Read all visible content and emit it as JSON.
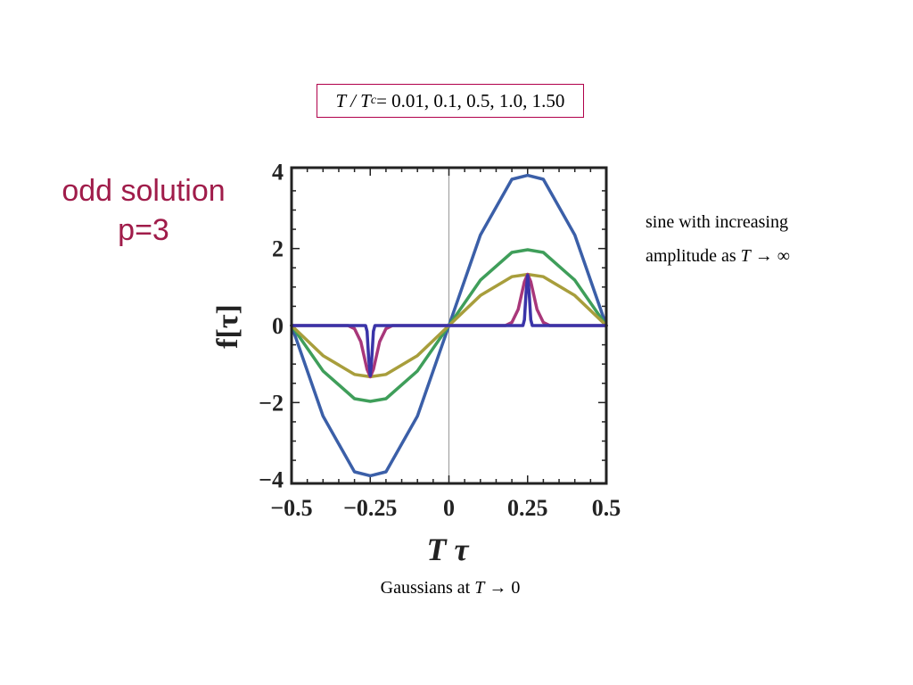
{
  "header": {
    "caption_prefix": "T / T",
    "caption_subscript": "c",
    "caption_values": " = 0.01, 0.1, 0.5, 1.0, 1.50"
  },
  "side_title": {
    "line1": "odd solution",
    "line2": "p=3"
  },
  "notes": {
    "right_line1": "sine with increasing",
    "right_line2_text": "amplitude as ",
    "right_line2_T": "T",
    "right_line2_arrow": " → ∞",
    "bottom_text": "Gaussians at ",
    "bottom_T": "T",
    "bottom_arrow": " → 0"
  },
  "colors": {
    "frame": "#b0004a",
    "side_title": "#a01c4a"
  },
  "chart_data": {
    "type": "line",
    "xlabel": "T τ",
    "ylabel": "f[τ]",
    "xlim": [
      -0.5,
      0.5
    ],
    "ylim": [
      -4.1,
      4.1
    ],
    "xticks": [
      {
        "value": -0.5,
        "label": "−0.5"
      },
      {
        "value": -0.25,
        "label": "−0.25"
      },
      {
        "value": 0,
        "label": "0"
      },
      {
        "value": 0.25,
        "label": "0.25"
      },
      {
        "value": 0.5,
        "label": "0.5"
      }
    ],
    "yticks": [
      {
        "value": -4,
        "label": "−4"
      },
      {
        "value": -2,
        "label": "−2"
      },
      {
        "value": 0,
        "label": "0"
      },
      {
        "value": 2,
        "label": "2"
      },
      {
        "value": 4,
        "label": "4"
      }
    ],
    "series": [
      {
        "color": "#3b5fa8",
        "x": [
          -0.5,
          -0.4,
          -0.3,
          -0.25,
          -0.2,
          -0.1,
          0,
          0.1,
          0.2,
          0.25,
          0.3,
          0.4,
          0.5
        ],
        "y": [
          0,
          -2.35,
          -3.8,
          -3.9,
          -3.8,
          -2.35,
          0,
          2.35,
          3.8,
          3.9,
          3.8,
          2.35,
          0
        ]
      },
      {
        "color": "#3f9e5a",
        "x": [
          -0.5,
          -0.4,
          -0.3,
          -0.25,
          -0.2,
          -0.1,
          0,
          0.1,
          0.2,
          0.25,
          0.3,
          0.4,
          0.5
        ],
        "y": [
          0,
          -1.18,
          -1.9,
          -1.97,
          -1.9,
          -1.18,
          0,
          1.18,
          1.9,
          1.97,
          1.9,
          1.18,
          0
        ]
      },
      {
        "color": "#a89e3c",
        "x": [
          -0.5,
          -0.4,
          -0.3,
          -0.25,
          -0.2,
          -0.1,
          0,
          0.1,
          0.2,
          0.25,
          0.3,
          0.4,
          0.5
        ],
        "y": [
          0,
          -0.78,
          -1.27,
          -1.33,
          -1.27,
          -0.78,
          0,
          0.78,
          1.27,
          1.33,
          1.27,
          0.78,
          0
        ]
      },
      {
        "color": "#a8377a",
        "x": [
          -0.5,
          -0.32,
          -0.3,
          -0.28,
          -0.26,
          -0.25,
          -0.24,
          -0.22,
          -0.2,
          -0.18,
          0,
          0.18,
          0.2,
          0.22,
          0.24,
          0.25,
          0.26,
          0.28,
          0.3,
          0.32,
          0.5
        ],
        "y": [
          0,
          0,
          -0.08,
          -0.42,
          -1.14,
          -1.33,
          -1.14,
          -0.42,
          -0.08,
          0,
          0,
          0,
          0.08,
          0.42,
          1.14,
          1.33,
          1.14,
          0.42,
          0.08,
          0,
          0
        ]
      },
      {
        "color": "#3a34a8",
        "x": [
          -0.5,
          -0.265,
          -0.26,
          -0.255,
          -0.25,
          -0.245,
          -0.24,
          -0.235,
          0,
          0.235,
          0.24,
          0.245,
          0.25,
          0.255,
          0.26,
          0.265,
          0.5
        ],
        "y": [
          0,
          0,
          -0.15,
          -0.85,
          -1.3,
          -0.85,
          -0.15,
          0,
          0,
          0,
          0.15,
          0.85,
          1.3,
          0.85,
          0.15,
          0,
          0
        ]
      }
    ]
  }
}
